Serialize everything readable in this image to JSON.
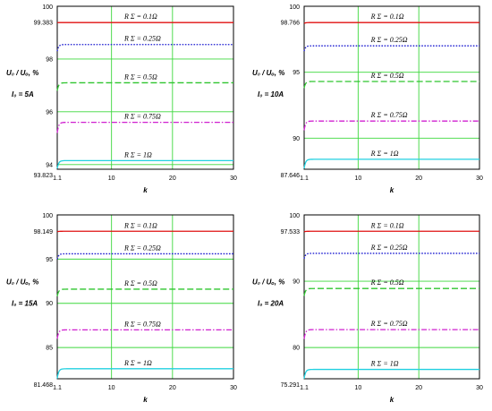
{
  "chart_data": [
    {
      "type": "line",
      "ylabel": "U₀ / Uₒ, %",
      "xlabel": "k",
      "current_label": "I₀ = 5A",
      "xlim": [
        1.1,
        30
      ],
      "x_ticks": [
        "1.1",
        "10",
        "20",
        "30"
      ],
      "ylim": [
        93.823,
        100
      ],
      "y_ticks": [
        "93.823",
        "94",
        "96",
        "98",
        "99.383",
        "100"
      ],
      "grid": true,
      "series": [
        {
          "name": "R Σ = 0.1Ω",
          "color": "#e01010",
          "dash": "solid",
          "start": 99.38,
          "value": 99.383
        },
        {
          "name": "R Σ = 0.25Ω",
          "color": "#1a1ad0",
          "dash": "dot",
          "start": 98.3,
          "value": 98.55
        },
        {
          "name": "R Σ = 0.5Ω",
          "color": "#2ec52e",
          "dash": "dash",
          "start": 96.8,
          "value": 97.1
        },
        {
          "name": "R Σ = 0.75Ω",
          "color": "#d020d0",
          "dash": "dashdot",
          "start": 95.2,
          "value": 95.6
        },
        {
          "name": "R Σ = 1Ω",
          "color": "#20d0e0",
          "dash": "solid",
          "start": 93.85,
          "value": 94.15
        }
      ]
    },
    {
      "type": "line",
      "ylabel": "U₀ / Uₒ, %",
      "xlabel": "k",
      "current_label": "I₀ = 10A",
      "xlim": [
        1.1,
        30
      ],
      "x_ticks": [
        "1.1",
        "10",
        "20",
        "30"
      ],
      "ylim": [
        87.646,
        100
      ],
      "y_ticks": [
        "87.646",
        "90",
        "95",
        "98.766",
        "100"
      ],
      "grid": true,
      "series": [
        {
          "name": "R Σ = 0.1Ω",
          "color": "#e01010",
          "dash": "solid",
          "start": 98.7,
          "value": 98.766
        },
        {
          "name": "R Σ = 0.25Ω",
          "color": "#1a1ad0",
          "dash": "dot",
          "start": 96.6,
          "value": 97.0
        },
        {
          "name": "R Σ = 0.5Ω",
          "color": "#2ec52e",
          "dash": "dash",
          "start": 93.8,
          "value": 94.3
        },
        {
          "name": "R Σ = 0.75Ω",
          "color": "#d020d0",
          "dash": "dashdot",
          "start": 90.6,
          "value": 91.3
        },
        {
          "name": "R Σ = 1Ω",
          "color": "#20d0e0",
          "dash": "solid",
          "start": 87.7,
          "value": 88.4
        }
      ]
    },
    {
      "type": "line",
      "ylabel": "U₀ / Uₒ, %",
      "xlabel": "k",
      "current_label": "I₀ = 15A",
      "xlim": [
        1.1,
        30
      ],
      "x_ticks": [
        "1.1",
        "10",
        "20",
        "30"
      ],
      "ylim": [
        81.468,
        100
      ],
      "y_ticks": [
        "81.468",
        "85",
        "90",
        "95",
        "98.149",
        "100"
      ],
      "grid": true,
      "series": [
        {
          "name": "R Σ = 0.1Ω",
          "color": "#e01010",
          "dash": "solid",
          "start": 98.1,
          "value": 98.149
        },
        {
          "name": "R Σ = 0.25Ω",
          "color": "#1a1ad0",
          "dash": "dot",
          "start": 95.0,
          "value": 95.6
        },
        {
          "name": "R Σ = 0.5Ω",
          "color": "#2ec52e",
          "dash": "dash",
          "start": 90.8,
          "value": 91.6
        },
        {
          "name": "R Σ = 0.75Ω",
          "color": "#d020d0",
          "dash": "dashdot",
          "start": 86.0,
          "value": 87.0
        },
        {
          "name": "R Σ = 1Ω",
          "color": "#20d0e0",
          "dash": "solid",
          "start": 81.5,
          "value": 82.6
        }
      ]
    },
    {
      "type": "line",
      "ylabel": "U₀ / Uₒ, %",
      "xlabel": "k",
      "current_label": "I₀ = 20A",
      "xlim": [
        1.1,
        30
      ],
      "x_ticks": [
        "1.1",
        "10",
        "20",
        "30"
      ],
      "ylim": [
        75.291,
        100
      ],
      "y_ticks": [
        "75.291",
        "80",
        "90",
        "97.533",
        "100"
      ],
      "grid": true,
      "series": [
        {
          "name": "R Σ = 0.1Ω",
          "color": "#e01010",
          "dash": "solid",
          "start": 97.45,
          "value": 97.533
        },
        {
          "name": "R Σ = 0.25Ω",
          "color": "#1a1ad0",
          "dash": "dot",
          "start": 93.4,
          "value": 94.2
        },
        {
          "name": "R Σ = 0.5Ω",
          "color": "#2ec52e",
          "dash": "dash",
          "start": 87.8,
          "value": 88.9
        },
        {
          "name": "R Σ = 0.75Ω",
          "color": "#d020d0",
          "dash": "dashdot",
          "start": 81.3,
          "value": 82.7
        },
        {
          "name": "R Σ = 1Ω",
          "color": "#20d0e0",
          "dash": "solid",
          "start": 75.3,
          "value": 76.7
        }
      ]
    }
  ]
}
